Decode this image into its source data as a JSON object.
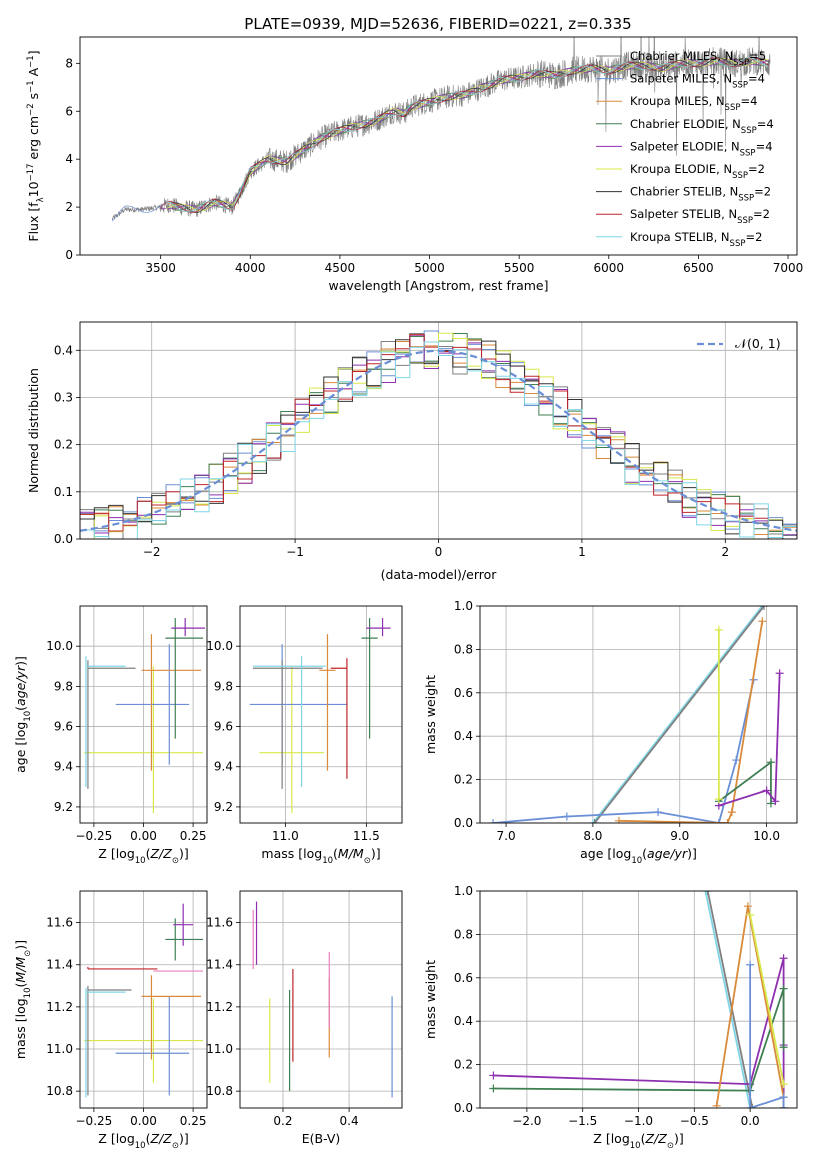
{
  "figure": {
    "title": "PLATE=0939, MJD=52636, FIBERID=0221, z=0.335"
  },
  "chart_data": [
    {
      "id": "spectrum",
      "type": "line",
      "xlabel": "wavelength [Angstrom, rest frame]",
      "ylabel": "Flux [f_λ 10^-17 erg cm^-2 s^-1 A^-1]",
      "xlim": [
        3050,
        7050
      ],
      "ylim": [
        0,
        9.1
      ],
      "xticks": [
        3500,
        4000,
        4500,
        5000,
        5500,
        6000,
        6500,
        7000
      ],
      "yticks": [
        0,
        2,
        4,
        6,
        8
      ],
      "grid": false,
      "legend_position": "top-right",
      "legend": [
        {
          "label": "Chabrier MILES, N_SSP=5",
          "color": "#7f7f7f"
        },
        {
          "label": "Salpeter MILES, N_SSP=4",
          "color": "#6a8fd6"
        },
        {
          "label": "Kroupa MILES, N_SSP=4",
          "color": "#d98a3a"
        },
        {
          "label": "Chabrier ELODIE, N_SSP=4",
          "color": "#3f7f52"
        },
        {
          "label": "Salpeter ELODIE, N_SSP=4",
          "color": "#8e2fb0"
        },
        {
          "label": "Kroupa ELODIE, N_SSP=2",
          "color": "#d8e84a"
        },
        {
          "label": "Chabrier STELIB, N_SSP=2",
          "color": "#333333"
        },
        {
          "label": "Salpeter STELIB, N_SSP=2",
          "color": "#c0242a"
        },
        {
          "label": "Kroupa STELIB, N_SSP=2",
          "color": "#7fd6e6"
        }
      ],
      "series": [
        {
          "color": "#7f7f7f",
          "x": [
            3230,
            3300,
            3400,
            3500,
            3550,
            3600,
            3700,
            3800,
            3900,
            3950,
            4000,
            4100,
            4200,
            4300,
            4400,
            4500,
            4600,
            4700,
            4800,
            4860,
            4900,
            5000,
            5100,
            5200,
            5300,
            5400,
            5500,
            5600,
            5700,
            5800,
            5900,
            6000,
            6100,
            6200,
            6300,
            6400,
            6500,
            6600,
            6700,
            6800,
            6900
          ],
          "y": [
            1.5,
            1.9,
            1.9,
            2.0,
            2.1,
            2.0,
            1.9,
            2.2,
            2.0,
            2.7,
            3.5,
            4.0,
            3.9,
            4.4,
            4.9,
            5.2,
            5.4,
            5.6,
            6.0,
            5.9,
            6.2,
            6.4,
            6.6,
            6.7,
            7.0,
            7.3,
            7.4,
            7.6,
            7.5,
            7.7,
            7.8,
            7.7,
            7.9,
            7.9,
            7.8,
            8.0,
            8.0,
            8.1,
            8.0,
            8.1,
            8.0
          ]
        }
      ]
    },
    {
      "id": "residuals",
      "type": "histogram",
      "xlabel": "(data-model)/error",
      "ylabel": "Normed distribution",
      "xlim": [
        -2.5,
        2.5
      ],
      "ylim": [
        0,
        0.46
      ],
      "xticks": [
        -2,
        -1,
        0,
        1,
        2
      ],
      "yticks": [
        0.0,
        0.1,
        0.2,
        0.3,
        0.4
      ],
      "grid": true,
      "legend_position": "top-right",
      "legend_label": "𝒩(0, 1)",
      "bin_width": 0.1
    },
    {
      "id": "z-age",
      "type": "errorbar",
      "xlabel": "Z [log10(Z/Z⊙)]",
      "ylabel": "age  [log10(age/yr)]",
      "xlim": [
        -0.32,
        0.32
      ],
      "ylim": [
        9.12,
        10.2
      ],
      "xticks": [
        -0.25,
        0.0,
        0.25
      ],
      "yticks": [
        9.2,
        9.4,
        9.6,
        9.8,
        10.0
      ],
      "grid": true,
      "points": [
        {
          "color": "#d8e84a",
          "x": 0.05,
          "xerr": [
            0.35,
            0.25
          ],
          "y": 9.47,
          "yerr": [
            0.3,
            0.43
          ]
        },
        {
          "color": "#6a8fd6",
          "x": 0.13,
          "xerr": [
            0.27,
            0.1
          ],
          "y": 9.71,
          "yerr": [
            0.3,
            0.3
          ]
        },
        {
          "color": "#7f7f7f",
          "x": -0.28,
          "xerr": [
            0,
            0.24
          ],
          "y": 9.89,
          "yerr": [
            0.6,
            0.04
          ]
        },
        {
          "color": "#7fd6e6",
          "x": -0.29,
          "xerr": [
            0,
            0.2
          ],
          "y": 9.9,
          "yerr": [
            0.6,
            0.05
          ]
        },
        {
          "color": "#d98a3a",
          "x": 0.04,
          "xerr": [
            0.05,
            0.25
          ],
          "y": 9.88,
          "yerr": [
            0.5,
            0.18
          ]
        },
        {
          "color": "#3f7f52",
          "x": 0.16,
          "xerr": [
            0.05,
            0.14
          ],
          "y": 10.04,
          "yerr": [
            0.5,
            0.1
          ]
        },
        {
          "color": "#8e2fb0",
          "x": 0.21,
          "xerr": [
            0.07,
            0.1
          ],
          "y": 10.09,
          "yerr": [
            0.04,
            0.05
          ]
        }
      ]
    },
    {
      "id": "mass-age",
      "type": "errorbar",
      "xlabel": "mass [log10(M/M⊙)]",
      "ylabel": "",
      "xlim": [
        10.72,
        11.72
      ],
      "ylim": [
        9.12,
        10.2
      ],
      "xticks": [
        11.0,
        11.5
      ],
      "yticks": [
        9.2,
        9.4,
        9.6,
        9.8,
        10.0
      ],
      "grid": true,
      "points": [
        {
          "color": "#d8e84a",
          "x": 11.04,
          "xerr": [
            0.2,
            0.2
          ],
          "y": 9.47,
          "yerr": [
            0.3,
            0.43
          ]
        },
        {
          "color": "#6a8fd6",
          "x": 10.98,
          "xerr": [
            0.2,
            0.4
          ],
          "y": 9.71,
          "yerr": [
            0.3,
            0.3
          ]
        },
        {
          "color": "#7f7f7f",
          "x": 10.98,
          "xerr": [
            0.18,
            0.25
          ],
          "y": 9.89,
          "yerr": [
            0.6,
            0.04
          ]
        },
        {
          "color": "#7fd6e6",
          "x": 11.1,
          "xerr": [
            0.3,
            0.15
          ],
          "y": 9.9,
          "yerr": [
            0.6,
            0.05
          ]
        },
        {
          "color": "#c0242a",
          "x": 11.38,
          "xerr": [
            0.1,
            0.0
          ],
          "y": 9.89,
          "yerr": [
            0.55,
            0.05
          ]
        },
        {
          "color": "#d98a3a",
          "x": 11.26,
          "xerr": [
            0.05,
            0.05
          ],
          "y": 9.88,
          "yerr": [
            0.5,
            0.18
          ]
        },
        {
          "color": "#3f7f52",
          "x": 11.52,
          "xerr": [
            0.05,
            0.05
          ],
          "y": 10.04,
          "yerr": [
            0.5,
            0.1
          ]
        },
        {
          "color": "#8e2fb0",
          "x": 11.6,
          "xerr": [
            0.1,
            0.05
          ],
          "y": 10.09,
          "yerr": [
            0.04,
            0.05
          ]
        }
      ]
    },
    {
      "id": "age-weight",
      "type": "line",
      "xlabel": "age  [log10(age/yr)]",
      "ylabel": "mass weight",
      "xlim": [
        6.7,
        10.35
      ],
      "ylim": [
        0,
        1.0
      ],
      "xticks": [
        7,
        8,
        9,
        10
      ],
      "yticks": [
        0.0,
        0.2,
        0.4,
        0.6,
        0.8,
        1.0
      ],
      "grid": true,
      "series": [
        {
          "color": "#7fd6e6",
          "x": [
            8.0,
            9.95
          ],
          "y": [
            0.0,
            1.0
          ]
        },
        {
          "color": "#7f7f7f",
          "x": [
            8.02,
            9.97
          ],
          "y": [
            0.0,
            1.0
          ]
        },
        {
          "color": "#6a8fd6",
          "x": [
            6.85,
            7.7,
            8.75,
            9.45,
            9.65,
            9.85
          ],
          "y": [
            0.0,
            0.03,
            0.05,
            0.0,
            0.29,
            0.66
          ]
        },
        {
          "color": "#d98a3a",
          "x": [
            8.3,
            9.55,
            9.6,
            9.95
          ],
          "y": [
            0.01,
            0.0,
            0.05,
            0.93
          ]
        },
        {
          "color": "#3f7f52",
          "x": [
            9.45,
            10.05,
            10.05
          ],
          "y": [
            0.1,
            0.28,
            0.09
          ]
        },
        {
          "color": "#8e2fb0",
          "x": [
            9.45,
            10.0,
            10.1,
            10.15
          ],
          "y": [
            0.08,
            0.15,
            0.1,
            0.69
          ]
        },
        {
          "color": "#d8e84a",
          "x": [
            9.45,
            9.45
          ],
          "y": [
            0.11,
            0.89
          ]
        }
      ]
    },
    {
      "id": "z-mass",
      "type": "errorbar",
      "xlabel": "Z [log10(Z/Z⊙)]",
      "ylabel": "mass [log10(M/M⊙)]",
      "xlim": [
        -0.32,
        0.32
      ],
      "ylim": [
        10.72,
        11.75
      ],
      "xticks": [
        -0.25,
        0.0,
        0.25
      ],
      "yticks": [
        10.8,
        11.0,
        11.2,
        11.4,
        11.6
      ],
      "grid": true,
      "points": [
        {
          "color": "#d8e84a",
          "x": 0.05,
          "xerr": [
            0.35,
            0.25
          ],
          "y": 11.04,
          "yerr": [
            0.2,
            0.2
          ]
        },
        {
          "color": "#6a8fd6",
          "x": 0.13,
          "xerr": [
            0.27,
            0.1
          ],
          "y": 10.98,
          "yerr": [
            0.2,
            0.27
          ]
        },
        {
          "color": "#7f7f7f",
          "x": -0.28,
          "xerr": [
            0,
            0.22
          ],
          "y": 11.28,
          "yerr": [
            0.5,
            0.02
          ]
        },
        {
          "color": "#7fd6e6",
          "x": -0.29,
          "xerr": [
            0,
            0.2
          ],
          "y": 11.27,
          "yerr": [
            0.5,
            0.02
          ]
        },
        {
          "color": "#c0242a",
          "x": -0.28,
          "xerr": [
            0,
            0.35
          ],
          "y": 11.38,
          "yerr": [
            0.0,
            0.01
          ]
        },
        {
          "color": "#d98a3a",
          "x": 0.04,
          "xerr": [
            0.05,
            0.25
          ],
          "y": 11.25,
          "yerr": [
            0.3,
            0.1
          ]
        },
        {
          "color": "#e87fbf",
          "x": 0.2,
          "xerr": [
            0.15,
            0.1
          ],
          "y": 11.37,
          "yerr": [
            0.0,
            0.0
          ]
        },
        {
          "color": "#3f7f52",
          "x": 0.16,
          "xerr": [
            0.05,
            0.14
          ],
          "y": 11.52,
          "yerr": [
            0.1,
            0.1
          ]
        },
        {
          "color": "#8e2fb0",
          "x": 0.2,
          "xerr": [
            0.05,
            0.05
          ],
          "y": 11.59,
          "yerr": [
            0.1,
            0.1
          ]
        }
      ]
    },
    {
      "id": "ebv-mass",
      "type": "errorbar",
      "xlabel": "E(B-V)",
      "ylabel": "",
      "xlim": [
        0.07,
        0.56
      ],
      "ylim": [
        10.72,
        11.75
      ],
      "xticks": [
        0.2,
        0.4
      ],
      "yticks": [
        10.8,
        11.0,
        11.2,
        11.4,
        11.6
      ],
      "grid": true,
      "points": [
        {
          "color": "#8e2fb0",
          "x": 0.12,
          "y": 11.55,
          "yerr": [
            0.15,
            0.15
          ]
        },
        {
          "color": "#e87fbf",
          "x": 0.11,
          "y": 11.52,
          "yerr": [
            0.14,
            0.14
          ]
        },
        {
          "color": "#d8e84a",
          "x": 0.16,
          "y": 11.04,
          "yerr": [
            0.2,
            0.2
          ]
        },
        {
          "color": "#3f7f52",
          "x": 0.22,
          "y": 11.05,
          "yerr": [
            0.25,
            0.23
          ]
        },
        {
          "color": "#c0242a",
          "x": 0.23,
          "y": 11.16,
          "yerr": [
            0.22,
            0.22
          ]
        },
        {
          "color": "#d98a3a",
          "x": 0.34,
          "y": 11.16,
          "yerr": [
            0.2,
            0.18
          ]
        },
        {
          "color": "#e87fbf",
          "x": 0.34,
          "y": 11.3,
          "yerr": [
            0.2,
            0.16
          ]
        },
        {
          "color": "#6a8fd6",
          "x": 0.53,
          "y": 11.0,
          "yerr": [
            0.23,
            0.25
          ]
        }
      ]
    },
    {
      "id": "z-weight",
      "type": "line",
      "xlabel": "Z [log10(Z/Z⊙)]",
      "ylabel": "mass weight",
      "xlim": [
        -2.42,
        0.42
      ],
      "ylim": [
        0,
        1.0
      ],
      "xticks": [
        -2.0,
        -1.5,
        -1.0,
        -0.5,
        0.0
      ],
      "yticks": [
        0.0,
        0.2,
        0.4,
        0.6,
        0.8,
        1.0
      ],
      "grid": true,
      "series": [
        {
          "color": "#7fd6e6",
          "x": [
            -0.4,
            0.0
          ],
          "y": [
            1.0,
            0.0
          ]
        },
        {
          "color": "#7f7f7f",
          "x": [
            -0.38,
            0.02
          ],
          "y": [
            1.0,
            0.0
          ]
        },
        {
          "color": "#8e2fb0",
          "x": [
            -2.3,
            0.0,
            0.3,
            0.3,
            0.3
          ],
          "y": [
            0.15,
            0.11,
            0.69,
            0.29,
            0.0
          ]
        },
        {
          "color": "#3f7f52",
          "x": [
            -2.3,
            0.0,
            0.3,
            0.3
          ],
          "y": [
            0.09,
            0.08,
            0.55,
            0.28
          ]
        },
        {
          "color": "#d98a3a",
          "x": [
            -0.3,
            -0.02,
            0.3,
            0.3
          ],
          "y": [
            0.01,
            0.93,
            0.05,
            0.0
          ]
        },
        {
          "color": "#d8e84a",
          "x": [
            0.0,
            0.3
          ],
          "y": [
            0.89,
            0.11
          ]
        },
        {
          "color": "#6a8fd6",
          "x": [
            0.0,
            0.0,
            0.3,
            0.3
          ],
          "y": [
            0.66,
            0.0,
            0.05,
            0.0
          ]
        }
      ]
    }
  ]
}
